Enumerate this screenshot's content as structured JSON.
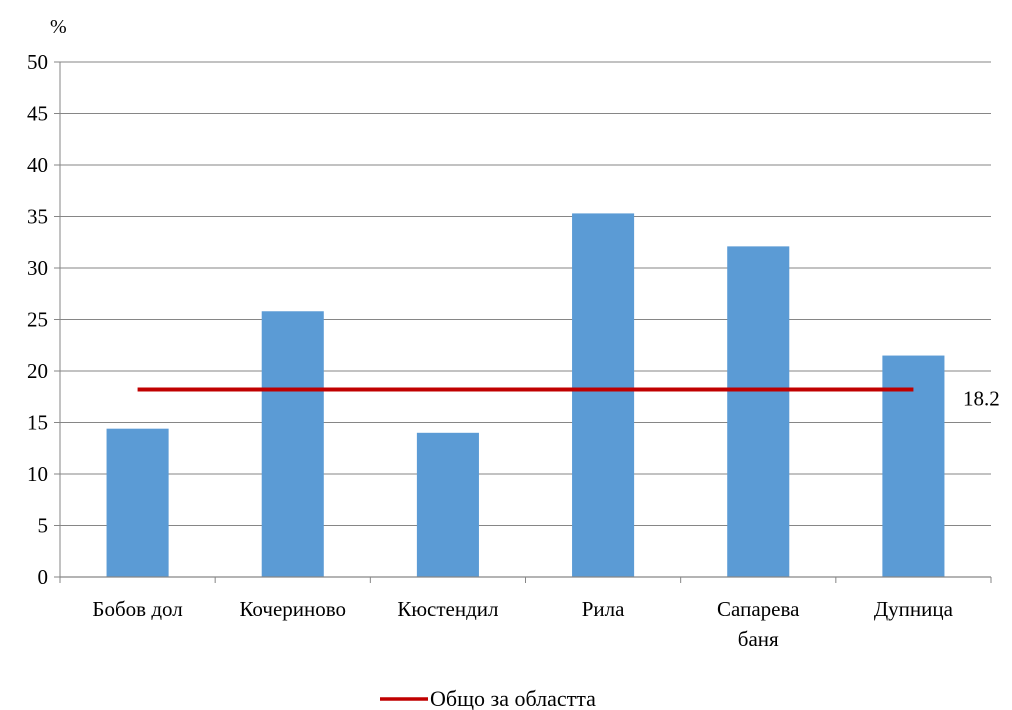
{
  "chart_data": {
    "type": "bar",
    "ylabel": "%",
    "ylim": [
      0,
      50
    ],
    "ytick_step": 5,
    "y_ticks": [
      "0",
      "5",
      "10",
      "15",
      "20",
      "25",
      "30",
      "35",
      "40",
      "45",
      "50"
    ],
    "grid": true,
    "categories": [
      [
        "Бобов дол"
      ],
      [
        "Кочериново"
      ],
      [
        "Кюстендил"
      ],
      [
        "Рила"
      ],
      [
        "Сапарева",
        "баня"
      ],
      [
        "Дупница"
      ]
    ],
    "values": [
      14.4,
      25.8,
      14.0,
      35.3,
      32.1,
      21.5
    ],
    "bar_color": "#5B9BD5",
    "reference_line": {
      "name": "Общо за областта",
      "value": 18.2,
      "label": "18.2",
      "color": "#C00000"
    },
    "legend": {
      "placement": "bottom",
      "label": "Общо за областта"
    }
  }
}
